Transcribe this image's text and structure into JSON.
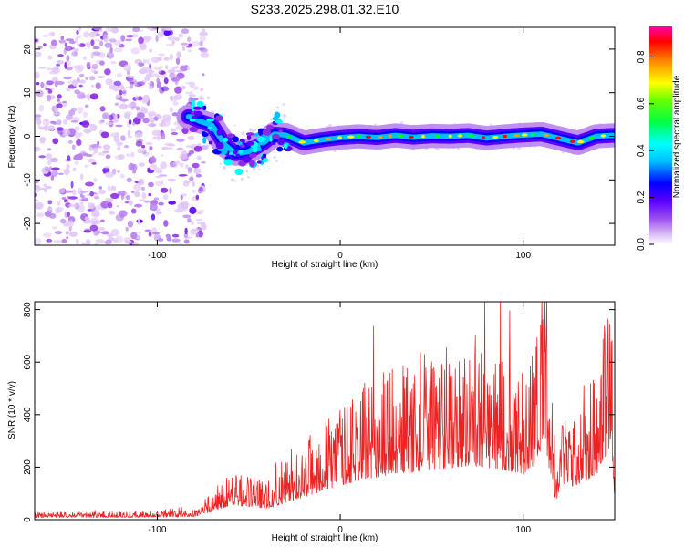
{
  "chart_data": [
    {
      "type": "heatmap",
      "title": "S233.2025.298.01.32.E10",
      "xlabel": "Height of straight line (km)",
      "ylabel": "Frequency (Hz)",
      "xlim": [
        -167,
        150
      ],
      "ylim": [
        -25,
        25
      ],
      "xticks": [
        -100,
        0,
        100
      ],
      "yticks": [
        -20,
        -10,
        0,
        10,
        20
      ],
      "colorbar": {
        "label": "Normalized spectral amplitude",
        "range": [
          0,
          0.93
        ],
        "ticks": [
          0.0,
          0.2,
          0.4,
          0.6,
          0.8
        ],
        "tick_labels": [
          "0.0",
          "0.2",
          "0.4",
          "0.6",
          "0.8"
        ]
      },
      "ridge": {
        "x": [
          -82,
          -77,
          -70,
          -63,
          -57,
          -50,
          -42,
          -36,
          -30,
          -20,
          -10,
          0,
          10,
          20,
          30,
          40,
          50,
          60,
          70,
          80,
          90,
          100,
          110,
          120,
          130,
          140,
          148
        ],
        "y": [
          4.5,
          3.5,
          2.5,
          -2,
          -4,
          -3.5,
          -1.5,
          0.5,
          0.3,
          -1.5,
          -0.8,
          -0.3,
          0,
          -0.3,
          0.2,
          -0.2,
          0.1,
          0,
          0.2,
          -0.4,
          0,
          0.3,
          0.5,
          -0.5,
          -1.5,
          0,
          0.2
        ]
      },
      "noise_region": {
        "x_start": -167,
        "x_end": -82,
        "y_range": [
          -25,
          25
        ]
      }
    },
    {
      "type": "line",
      "xlabel": "Height of straight line (km)",
      "ylabel": "SNR (10 * v/v)",
      "xlim": [
        -167,
        150
      ],
      "ylim": [
        0,
        830
      ],
      "xticks": [
        -100,
        0,
        100
      ],
      "yticks": [
        0,
        200,
        400,
        600,
        800
      ],
      "series": [
        {
          "name": "SNR",
          "color": "#ee2222",
          "envelope_x": [
            -167,
            -100,
            -80,
            -72,
            -60,
            -50,
            -40,
            -30,
            -20,
            -10,
            0,
            10,
            20,
            30,
            40,
            50,
            60,
            70,
            80,
            90,
            100,
            105,
            110,
            112,
            115,
            118,
            120,
            130,
            140,
            145,
            148,
            150
          ],
          "envelope_y": [
            18,
            20,
            25,
            60,
            120,
            110,
            95,
            140,
            190,
            240,
            290,
            330,
            360,
            390,
            400,
            430,
            430,
            460,
            440,
            420,
            380,
            450,
            600,
            560,
            350,
            150,
            250,
            300,
            380,
            520,
            650,
            150
          ],
          "spread": 0.55,
          "samples": 1300
        }
      ]
    }
  ],
  "colors": {
    "line": "#ee2222",
    "colormap": [
      "#ffffff",
      "#e3c9f7",
      "#b884ee",
      "#8b2be2",
      "#5a00ff",
      "#0000ff",
      "#00bfff",
      "#00ffff",
      "#00ff66",
      "#00ff00",
      "#ffff00",
      "#ff9900",
      "#ff0000",
      "#ff00aa"
    ]
  }
}
